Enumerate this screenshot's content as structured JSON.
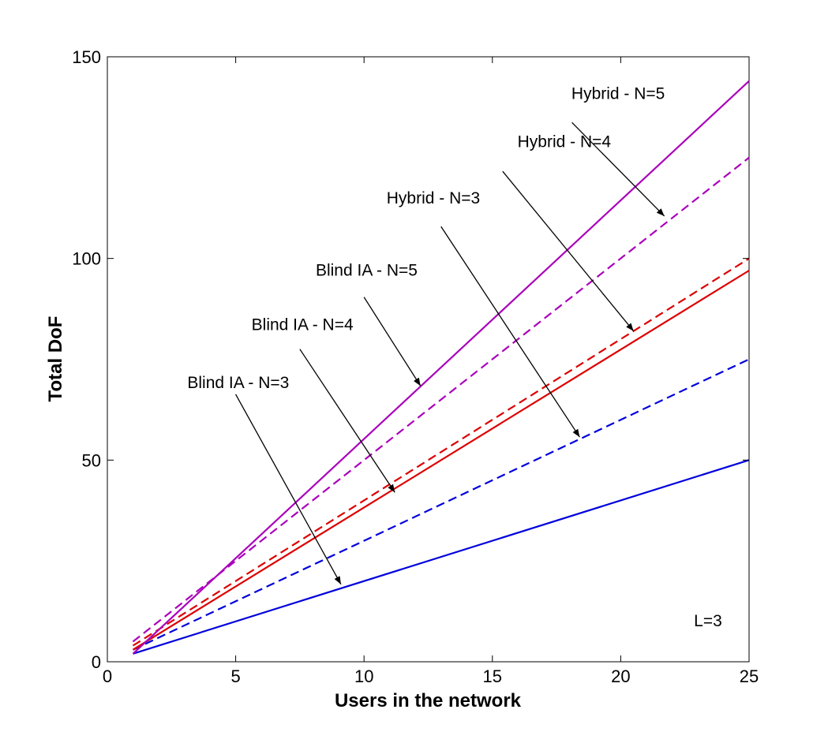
{
  "chart_data": {
    "type": "line",
    "xlabel": "Users in the network",
    "ylabel": "Total DoF",
    "xlim": [
      0,
      25
    ],
    "ylim": [
      0,
      150
    ],
    "xticks": [
      0,
      5,
      10,
      15,
      20,
      25
    ],
    "yticks": [
      0,
      50,
      100,
      150
    ],
    "grid": false,
    "series": [
      {
        "color": "#0000dd",
        "style": "solid",
        "x": [
          1,
          25
        ],
        "y": [
          2,
          50
        ]
      },
      {
        "color": "#0000dd",
        "style": "dashed",
        "x": [
          1,
          25
        ],
        "y": [
          3,
          75
        ]
      },
      {
        "color": "#dd0000",
        "style": "solid",
        "x": [
          1,
          25
        ],
        "y": [
          3,
          97
        ]
      },
      {
        "color": "#dd0000",
        "style": "dashed",
        "x": [
          1,
          25
        ],
        "y": [
          4,
          100
        ]
      },
      {
        "color": "#aa00bb",
        "style": "solid",
        "x": [
          1,
          25
        ],
        "y": [
          2,
          144
        ]
      },
      {
        "color": "#aa00bb",
        "style": "dashed",
        "x": [
          1,
          25
        ],
        "y": [
          5,
          125
        ]
      }
    ],
    "annotations": [
      {
        "text": "Hybrid - N=5",
        "text_at": [
          19.9,
          139.5
        ],
        "arrow_from": [
          18.1,
          133.7
        ],
        "arrow_to": [
          21.7,
          110.5
        ]
      },
      {
        "text": "Hybrid - N=4",
        "text_at": [
          17.8,
          127.6
        ],
        "arrow_from": [
          15.4,
          121.6
        ],
        "arrow_to": [
          20.5,
          82.0
        ]
      },
      {
        "text": "Hybrid - N=3",
        "text_at": [
          12.7,
          113.6
        ],
        "arrow_from": [
          13.0,
          107.9
        ],
        "arrow_to": [
          18.4,
          55.7
        ]
      },
      {
        "text": "Blind IA - N=5",
        "text_at": [
          10.1,
          95.7
        ],
        "arrow_from": [
          10.0,
          90.4
        ],
        "arrow_to": [
          12.2,
          68.4
        ]
      },
      {
        "text": "Blind IA - N=4",
        "text_at": [
          7.6,
          82.2
        ],
        "arrow_from": [
          7.5,
          77.5
        ],
        "arrow_to": [
          11.2,
          42.0
        ]
      },
      {
        "text": "Blind IA - N=3",
        "text_at": [
          5.1,
          67.9
        ],
        "arrow_from": [
          5.0,
          66.3
        ],
        "arrow_to": [
          9.1,
          19.2
        ]
      },
      {
        "text": "L=3",
        "text_at": [
          23.4,
          8.8
        ]
      }
    ]
  }
}
